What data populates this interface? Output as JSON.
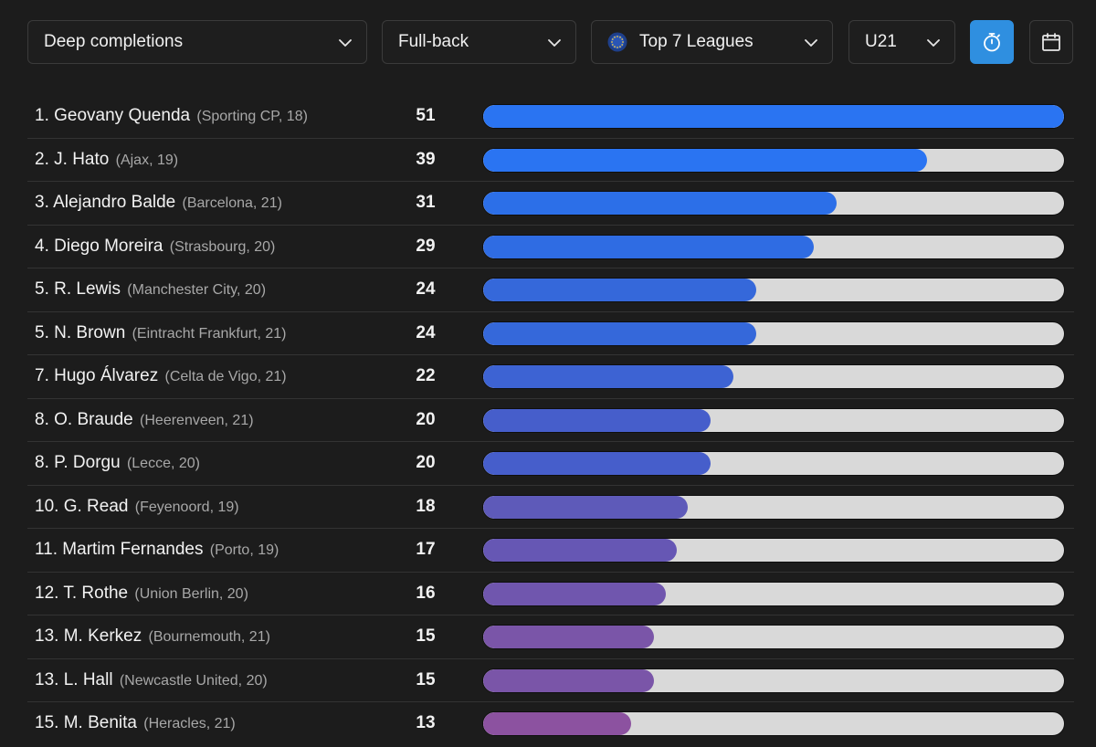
{
  "filters": {
    "metric": "Deep completions",
    "position": "Full-back",
    "league": "Top 7 Leagues",
    "age": "U21"
  },
  "icons": {
    "dropdown": "chevron-down-icon",
    "league": "globe-icon",
    "timer": "stopwatch-icon",
    "calendar": "calendar-icon"
  },
  "colors": {
    "active_button": "#2f8fe0",
    "bar_track": "#d9d9d9"
  },
  "chart_data": {
    "type": "bar",
    "title": "",
    "xlim": [
      0,
      51
    ],
    "players": [
      {
        "rank": "1.",
        "name": "Geovany Quenda",
        "club": "(Sporting CP, 18)",
        "value": 51,
        "color": "#2a74f2"
      },
      {
        "rank": "2.",
        "name": "J. Hato",
        "club": "(Ajax, 19)",
        "value": 39,
        "color": "#2a74f2"
      },
      {
        "rank": "3.",
        "name": "Alejandro Balde",
        "club": "(Barcelona, 21)",
        "value": 31,
        "color": "#2c6fe8"
      },
      {
        "rank": "4.",
        "name": "Diego Moreira",
        "club": "(Strasbourg, 20)",
        "value": 29,
        "color": "#2f6ce3"
      },
      {
        "rank": "5.",
        "name": "R. Lewis",
        "club": "(Manchester City, 20)",
        "value": 24,
        "color": "#3568da"
      },
      {
        "rank": "5.",
        "name": "N. Brown",
        "club": "(Eintracht Frankfurt, 21)",
        "value": 24,
        "color": "#3568da"
      },
      {
        "rank": "7.",
        "name": "Hugo Álvarez",
        "club": "(Celta de Vigo, 21)",
        "value": 22,
        "color": "#3d63d3"
      },
      {
        "rank": "8.",
        "name": "O. Braude",
        "club": "(Heerenveen, 21)",
        "value": 20,
        "color": "#465ecb"
      },
      {
        "rank": "8.",
        "name": "P. Dorgu",
        "club": "(Lecce, 20)",
        "value": 20,
        "color": "#465ecb"
      },
      {
        "rank": "10.",
        "name": "G. Read",
        "club": "(Feyenoord, 19)",
        "value": 18,
        "color": "#5e5ab9"
      },
      {
        "rank": "11.",
        "name": "Martim Fernandes",
        "club": "(Porto, 19)",
        "value": 17,
        "color": "#6657b4"
      },
      {
        "rank": "12.",
        "name": "T. Rothe",
        "club": "(Union Berlin, 20)",
        "value": 16,
        "color": "#7056ae"
      },
      {
        "rank": "13.",
        "name": "M. Kerkez",
        "club": "(Bournemouth, 21)",
        "value": 15,
        "color": "#7a55a8"
      },
      {
        "rank": "13.",
        "name": "L. Hall",
        "club": "(Newcastle United, 20)",
        "value": 15,
        "color": "#7a55a8"
      },
      {
        "rank": "15.",
        "name": "M. Benita",
        "club": "(Heracles, 21)",
        "value": 13,
        "color": "#8c52a0"
      }
    ]
  }
}
